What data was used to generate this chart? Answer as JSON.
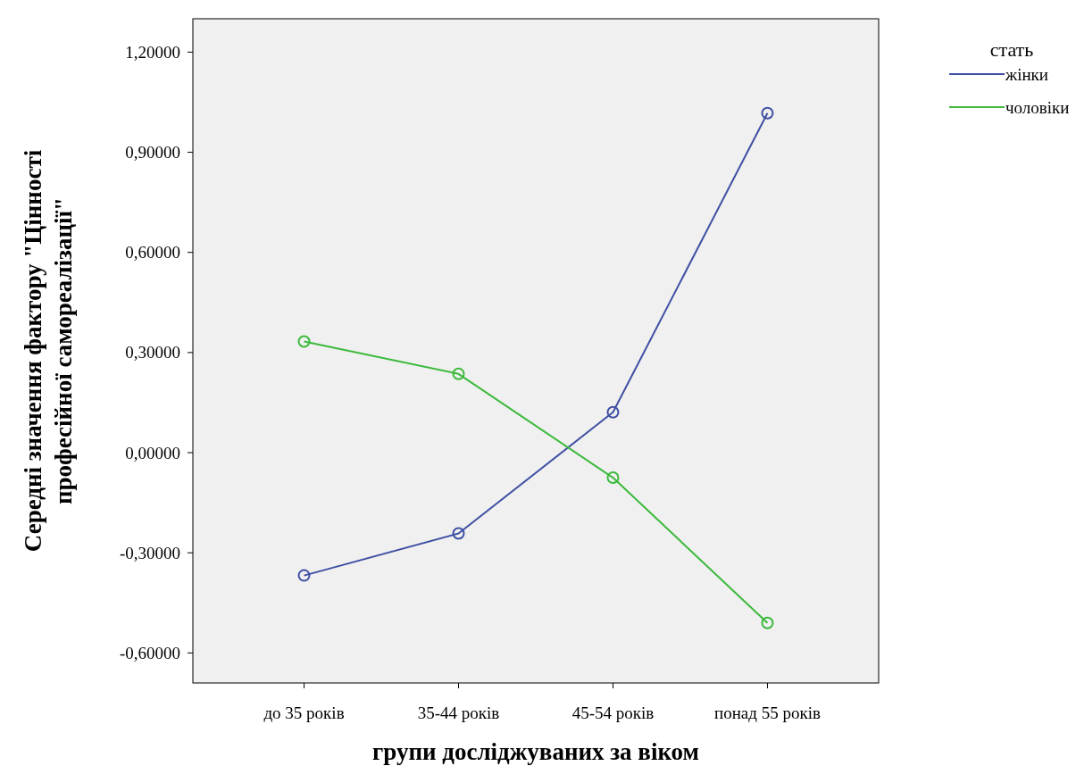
{
  "chart_data": {
    "type": "line",
    "xlabel": "групи досліджуваних за віком",
    "ylabel": "Середні значення фактору \"Цінності професійної самореалізації\"",
    "legend_title": "стать",
    "legend": "top right",
    "marker": "circle",
    "grid": false,
    "categories": [
      "до 35 років",
      "35-44 років",
      "45-54 років",
      "понад 55 років"
    ],
    "ylim": [
      -0.69,
      1.3
    ],
    "yticks": [
      {
        "value": -0.6,
        "label": "-0,60000"
      },
      {
        "value": -0.3,
        "label": "-0,30000"
      },
      {
        "value": 0,
        "label": "0,00000"
      },
      {
        "value": 0.3,
        "label": "0,30000"
      },
      {
        "value": 0.6,
        "label": "0,60000"
      },
      {
        "value": 0.9,
        "label": "0,90000"
      },
      {
        "value": 1.2,
        "label": "1,20000"
      }
    ],
    "series": [
      {
        "name": "жінки",
        "color": "#3e4fa3",
        "values": [
          -0.368,
          -0.242,
          0.121,
          1.017
        ]
      },
      {
        "name": "чоловіки",
        "color": "#3cb93c",
        "values": [
          0.333,
          0.236,
          -0.075,
          -0.51
        ]
      }
    ]
  }
}
